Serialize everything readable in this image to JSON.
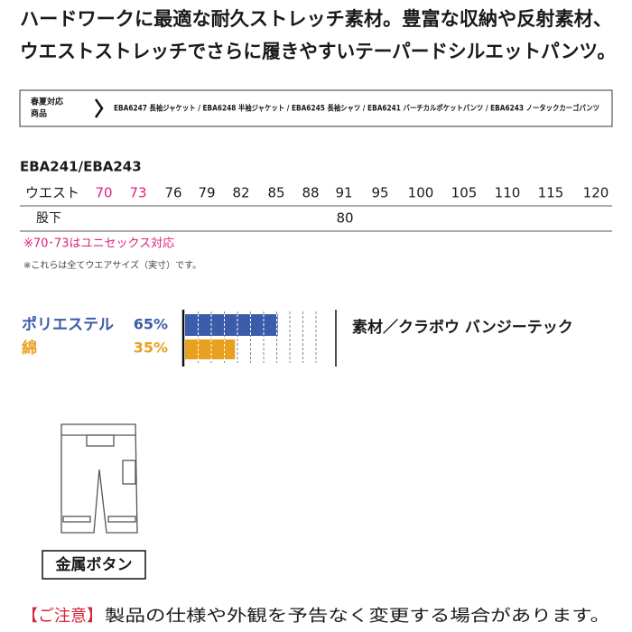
{
  "header": {
    "lines": [
      "ハードワークに最適な耐久ストレッチ素材。豊富な収納や反射素材、",
      "ウエストストレッチでさらに履きやすいテーパードシルエットパンツ。"
    ]
  },
  "related": {
    "label": [
      "春夏対応",
      "商品"
    ],
    "items": "EBA6247 長袖ジャケット / EBA6248 半袖ジャケット / EBA6245 長袖シャツ / EBA6241 バーチカルポケットパンツ / EBA6243 ノータックカーゴパンツ"
  },
  "sizes": {
    "model": "EBA241/EBA243",
    "waist_label": "ウエスト",
    "waist": [
      70,
      73,
      76,
      79,
      82,
      85,
      88,
      91,
      95,
      100,
      105,
      110,
      115,
      120
    ],
    "inseam_label": "股下",
    "inseam": 80,
    "notes": [
      "※70･73はユニセックス対応",
      "※これらは全てウエアサイズ（実寸）です。"
    ]
  },
  "composition": [
    {
      "name": "ポリエステル",
      "value": 65,
      "label": "65%",
      "color": "#3b5ca8"
    },
    {
      "name": "綿",
      "value": 35,
      "label": "35%",
      "color": "#e8a020"
    }
  ],
  "material": "素材／クラボウ バンジーテック",
  "feature": "金属ボタン",
  "footer": {
    "notice": "【ご注意】",
    "text": "製品の仕様や外観を予告なく変更する場合があります。"
  }
}
